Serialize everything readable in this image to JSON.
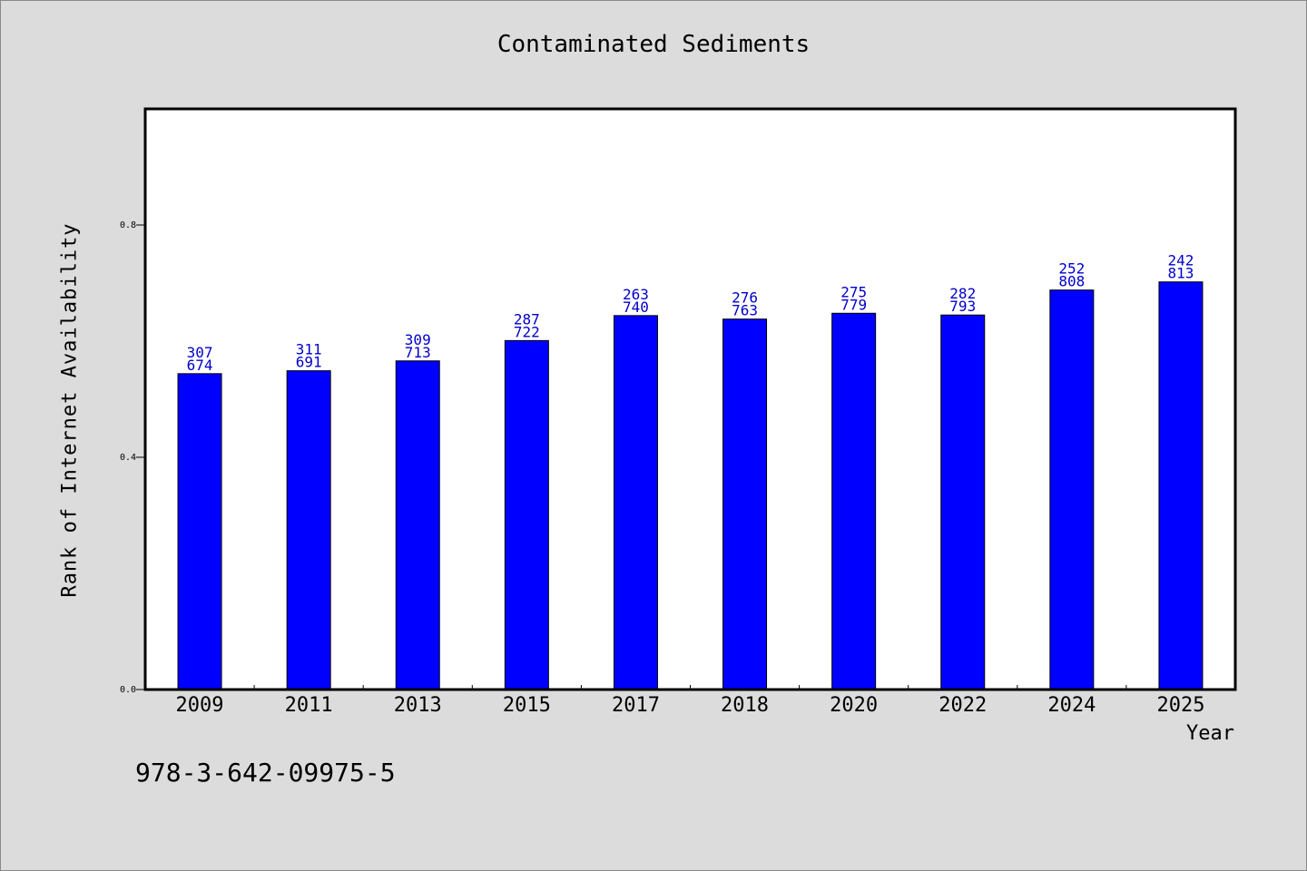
{
  "chart_data": {
    "type": "bar",
    "title": "Contaminated Sediments",
    "xlabel": "Year",
    "ylabel": "Rank of Internet Availability",
    "categories": [
      "2009",
      "2011",
      "2013",
      "2015",
      "2017",
      "2018",
      "2020",
      "2022",
      "2024",
      "2025"
    ],
    "values": [
      0.544,
      0.549,
      0.566,
      0.601,
      0.644,
      0.638,
      0.648,
      0.645,
      0.688,
      0.702
    ],
    "data_labels": [
      [
        "307",
        "674"
      ],
      [
        "311",
        "691"
      ],
      [
        "309",
        "713"
      ],
      [
        "287",
        "722"
      ],
      [
        "263",
        "740"
      ],
      [
        "276",
        "763"
      ],
      [
        "275",
        "779"
      ],
      [
        "282",
        "793"
      ],
      [
        "252",
        "808"
      ],
      [
        "242",
        "813"
      ]
    ],
    "ylim": [
      0,
      1.0
    ],
    "yticks": [
      "0.0",
      "0.4",
      "0.8"
    ],
    "ytick_values": [
      0.0,
      0.4,
      0.8
    ],
    "grid": false,
    "bar_color": "#0000ff",
    "label_color": "#0000cc"
  },
  "footer": {
    "code": "978-3-642-09975-5"
  }
}
